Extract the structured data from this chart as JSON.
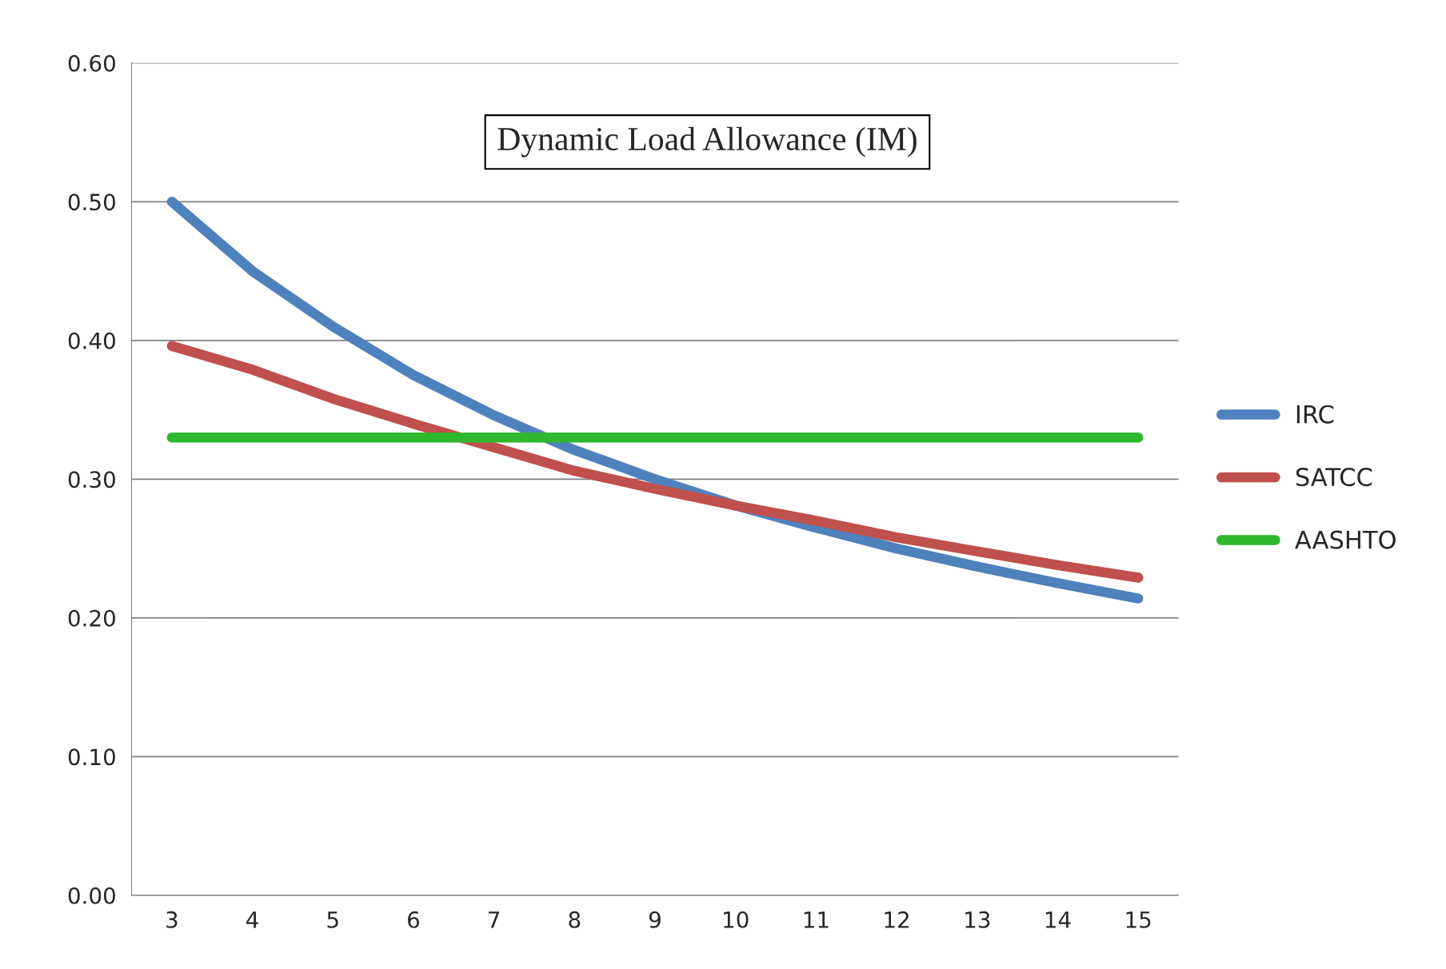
{
  "chart_data": {
    "type": "line",
    "title": "Dynamic Load Allowance (IM)",
    "categories": [
      "3",
      "4",
      "5",
      "6",
      "7",
      "8",
      "9",
      "10",
      "11",
      "12",
      "13",
      "14",
      "15"
    ],
    "series": [
      {
        "name": "IRC",
        "color": "#4f81bd",
        "values": [
          0.5,
          0.45,
          0.41,
          0.375,
          0.346,
          0.321,
          0.3,
          0.281,
          0.265,
          0.25,
          0.237,
          0.225,
          0.214
        ]
      },
      {
        "name": "SATCC",
        "color": "#c0504d",
        "values": [
          0.396,
          0.379,
          0.358,
          0.34,
          0.323,
          0.306,
          0.293,
          0.281,
          0.27,
          0.258,
          0.248,
          0.238,
          0.229
        ]
      },
      {
        "name": "AASHTO",
        "color": "#2eb82e",
        "values": [
          0.33,
          0.33,
          0.33,
          0.33,
          0.33,
          0.33,
          0.33,
          0.33,
          0.33,
          0.33,
          0.33,
          0.33,
          0.33
        ]
      }
    ],
    "ylim": [
      0,
      0.6
    ],
    "yticks": [
      {
        "value": 0,
        "label": "0.00"
      },
      {
        "value": 0.1,
        "label": "0.10"
      },
      {
        "value": 0.2,
        "label": "0.20"
      },
      {
        "value": 0.3,
        "label": "0.30"
      },
      {
        "value": 0.4,
        "label": "0.40"
      },
      {
        "value": 0.5,
        "label": "0.50"
      },
      {
        "value": 0.6,
        "label": "0.60"
      }
    ],
    "grid": "y",
    "legend": "right",
    "marker": "none",
    "line_style": "solid"
  }
}
